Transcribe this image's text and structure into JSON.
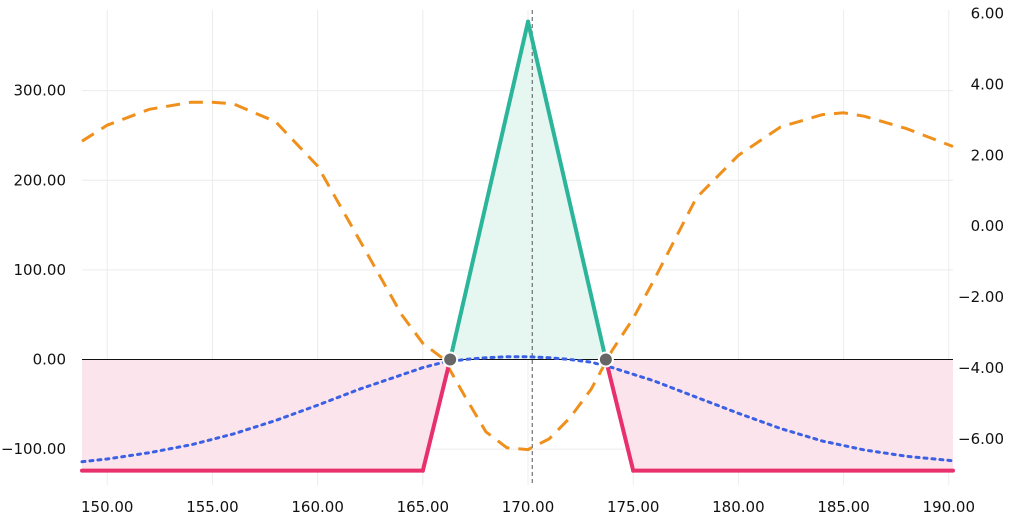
{
  "chart_data": {
    "type": "line",
    "x_ticks": [
      "150.00",
      "155.00",
      "160.00",
      "165.00",
      "170.00",
      "175.00",
      "180.00",
      "185.00",
      "190.00"
    ],
    "y_left_ticks": [
      "300.00",
      "200.00",
      "100.00",
      "0.00",
      "−100.00"
    ],
    "y_right_ticks": [
      "6.00",
      "4.00",
      "2.00",
      "0.00",
      "−2.00",
      "−4.00",
      "−6.00"
    ],
    "xlim": [
      148.8,
      190.2
    ],
    "ylim_left": [
      -140,
      390
    ],
    "ylim_right": [
      -7.3,
      6.1
    ],
    "grid": true,
    "current_price": 170.2,
    "breakevens": [
      166.3,
      173.7
    ],
    "series": [
      {
        "axis": "left",
        "style": "solid",
        "color_profit": "#2bb59a",
        "color_loss": "#e8306d",
        "fill_profit": "#e6f6f1",
        "fill_loss": "#fce4ec",
        "points": [
          [
            148.8,
            -124
          ],
          [
            165,
            -124
          ],
          [
            170,
            377
          ],
          [
            175,
            -124
          ],
          [
            190.2,
            -124
          ]
        ]
      },
      {
        "axis": "left",
        "style": "dotted",
        "color": "#3b60e4",
        "points": [
          [
            148.8,
            -114
          ],
          [
            150,
            -111
          ],
          [
            152,
            -104
          ],
          [
            154,
            -95
          ],
          [
            156,
            -83
          ],
          [
            158,
            -68
          ],
          [
            160,
            -51
          ],
          [
            162,
            -33
          ],
          [
            164,
            -17
          ],
          [
            165,
            -9
          ],
          [
            166,
            -3
          ],
          [
            167,
            0
          ],
          [
            168,
            2
          ],
          [
            169,
            3
          ],
          [
            170,
            3
          ],
          [
            171,
            2
          ],
          [
            172,
            0
          ],
          [
            173,
            -3
          ],
          [
            174,
            -9
          ],
          [
            176,
            -24
          ],
          [
            178,
            -42
          ],
          [
            180,
            -60
          ],
          [
            182,
            -77
          ],
          [
            184,
            -91
          ],
          [
            186,
            -101
          ],
          [
            188,
            -108
          ],
          [
            190.2,
            -113
          ]
        ]
      },
      {
        "axis": "right",
        "style": "dashed",
        "color": "#f0901c",
        "points": [
          [
            148.8,
            2.4
          ],
          [
            150,
            2.85
          ],
          [
            152,
            3.3
          ],
          [
            154,
            3.5
          ],
          [
            155,
            3.5
          ],
          [
            156,
            3.45
          ],
          [
            158,
            2.95
          ],
          [
            160,
            1.7
          ],
          [
            162,
            -0.4
          ],
          [
            164,
            -2.5
          ],
          [
            165,
            -3.3
          ],
          [
            166,
            -3.75
          ],
          [
            167,
            -4.8
          ],
          [
            168,
            -5.8
          ],
          [
            169,
            -6.25
          ],
          [
            170,
            -6.3
          ],
          [
            171,
            -6.0
          ],
          [
            172,
            -5.4
          ],
          [
            173,
            -4.6
          ],
          [
            174,
            -3.5
          ],
          [
            175,
            -2.6
          ],
          [
            176,
            -1.5
          ],
          [
            178,
            0.8
          ],
          [
            180,
            2.0
          ],
          [
            182,
            2.8
          ],
          [
            184,
            3.15
          ],
          [
            185,
            3.2
          ],
          [
            186,
            3.1
          ],
          [
            188,
            2.75
          ],
          [
            190.2,
            2.25
          ]
        ]
      }
    ]
  }
}
